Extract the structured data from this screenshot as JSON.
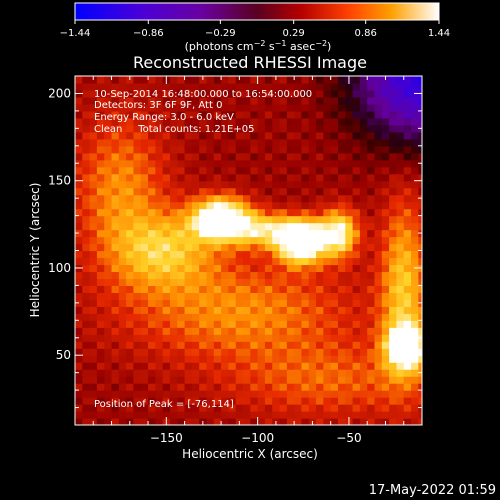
{
  "chart_data": {
    "type": "heatmap",
    "title": "Reconstructed RHESSI Image",
    "xlabel": "Heliocentric X (arcsec)",
    "ylabel": "Heliocentric Y (arcsec)",
    "xlim": [
      -200,
      -10
    ],
    "ylim": [
      10,
      210
    ],
    "x_ticks": [
      -150,
      -100,
      -50
    ],
    "x_tick_labels": [
      "−150",
      "−100",
      "−50"
    ],
    "y_ticks": [
      50,
      100,
      150,
      200
    ],
    "y_tick_labels": [
      "50",
      "100",
      "150",
      "200"
    ],
    "colorbar": {
      "min": -1.44,
      "max": 1.44,
      "ticks": [
        -1.44,
        -0.86,
        -0.29,
        0.29,
        0.86,
        1.44
      ],
      "tick_labels": [
        "−1.44",
        "−0.86",
        "−0.29",
        "0.29",
        "0.86",
        "1.44"
      ],
      "units_html": "(photons cm<tspan dy=\"-4\" font-size=\"8\">−2</tspan><tspan dy=\"4\"> s</tspan><tspan dy=\"-4\" font-size=\"8\">−1</tspan><tspan dy=\"4\"> asec</tspan><tspan dy=\"-4\" font-size=\"8\">−2</tspan><tspan dy=\"4\">)</tspan>",
      "colormap": "RHESSI red-temperature"
    },
    "annotations": [
      "10-Sep-2014 16:48:00.000 to 16:54:00.000",
      "Detectors: 3F 6F 9F, Att 0",
      "Energy Range: 3.0 - 6.0 keV",
      "Clean     Total counts: 1.21E+05"
    ],
    "peak_label": "Position of Peak = [-76,114]",
    "peak": [
      -76,
      114
    ],
    "sources": [
      {
        "x": -76,
        "y": 114,
        "intensity": 1.44,
        "sx": 9,
        "sy": 8
      },
      {
        "x": -120,
        "y": 130,
        "intensity": 1.3,
        "sx": 11,
        "sy": 8
      },
      {
        "x": -55,
        "y": 120,
        "intensity": 0.95,
        "sx": 7,
        "sy": 10
      },
      {
        "x": -95,
        "y": 122,
        "intensity": 0.85,
        "sx": 22,
        "sy": 7
      },
      {
        "x": -150,
        "y": 110,
        "intensity": 0.7,
        "sx": 20,
        "sy": 15
      },
      {
        "x": -18,
        "y": 55,
        "intensity": 1.2,
        "sx": 8,
        "sy": 9
      },
      {
        "x": -20,
        "y": 90,
        "intensity": 0.75,
        "sx": 9,
        "sy": 35
      },
      {
        "x": -175,
        "y": 145,
        "intensity": 0.55,
        "sx": 18,
        "sy": 30
      },
      {
        "x": -110,
        "y": 75,
        "intensity": 0.55,
        "sx": 45,
        "sy": 20
      },
      {
        "x": -60,
        "y": 35,
        "intensity": 0.4,
        "sx": 40,
        "sy": 15
      }
    ]
  },
  "timestamp": "17-May-2022 01:59"
}
